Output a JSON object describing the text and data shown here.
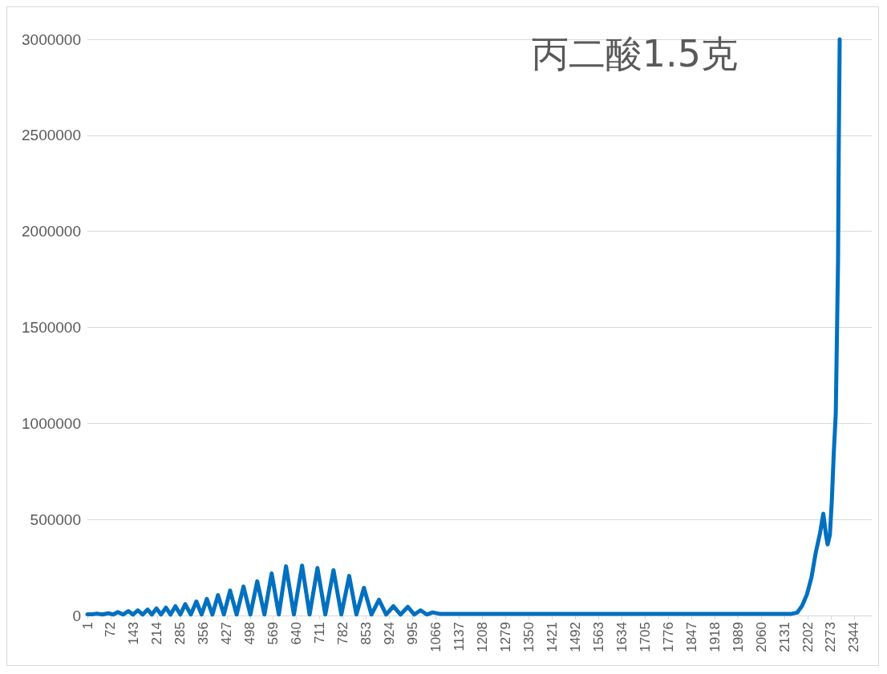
{
  "chart_data": {
    "type": "line",
    "title": "丙二酸1.5克",
    "x": [
      1,
      15,
      30,
      47,
      65,
      80,
      94,
      110,
      126,
      140,
      155,
      170,
      185,
      198,
      212,
      226,
      241,
      255,
      270,
      285,
      300,
      317,
      334,
      350,
      366,
      383,
      400,
      418,
      437,
      457,
      478,
      499,
      520,
      542,
      564,
      586,
      608,
      632,
      657,
      680,
      704,
      728,
      753,
      777,
      801,
      823,
      846,
      869,
      892,
      914,
      936,
      958,
      980,
      1000,
      1019,
      1038,
      1056,
      1080,
      1150,
      1300,
      1500,
      1700,
      1900,
      2100,
      2150,
      2170,
      2185,
      2200,
      2214,
      2226,
      2240,
      2250,
      2258,
      2263,
      2270,
      2276,
      2282,
      2288,
      2292,
      2295,
      2297,
      2300
    ],
    "values": [
      6000,
      6000,
      10000,
      5000,
      12000,
      5000,
      18000,
      5000,
      23000,
      5000,
      27000,
      5000,
      31000,
      5000,
      37000,
      5000,
      41000,
      5000,
      48000,
      5000,
      59000,
      5000,
      73000,
      5000,
      86000,
      5000,
      106000,
      5000,
      130000,
      5000,
      151000,
      5000,
      178000,
      5000,
      219000,
      5000,
      256000,
      5000,
      260000,
      5000,
      247000,
      5000,
      236000,
      5000,
      206000,
      5000,
      144000,
      5000,
      82000,
      5000,
      48000,
      5000,
      45000,
      5000,
      27000,
      5000,
      16000,
      8000,
      8000,
      8000,
      8000,
      8000,
      8000,
      8000,
      8000,
      15000,
      50000,
      110000,
      200000,
      320000,
      430000,
      530000,
      420000,
      370000,
      420000,
      600000,
      850000,
      1050000,
      1500000,
      1850000,
      2400000,
      3000000
    ],
    "color": "#0070c0",
    "xlim": [
      1,
      2398
    ],
    "xticks": [
      1,
      72,
      143,
      214,
      285,
      356,
      427,
      498,
      569,
      640,
      711,
      782,
      853,
      924,
      995,
      1066,
      1137,
      1208,
      1279,
      1350,
      1421,
      1492,
      1563,
      1634,
      1705,
      1776,
      1847,
      1918,
      1989,
      2060,
      2131,
      2202,
      2273,
      2344
    ],
    "ylim": [
      0,
      3000000
    ],
    "yticks": [
      0,
      500000,
      1000000,
      1500000,
      2000000,
      2500000,
      3000000
    ],
    "grid": "y"
  }
}
